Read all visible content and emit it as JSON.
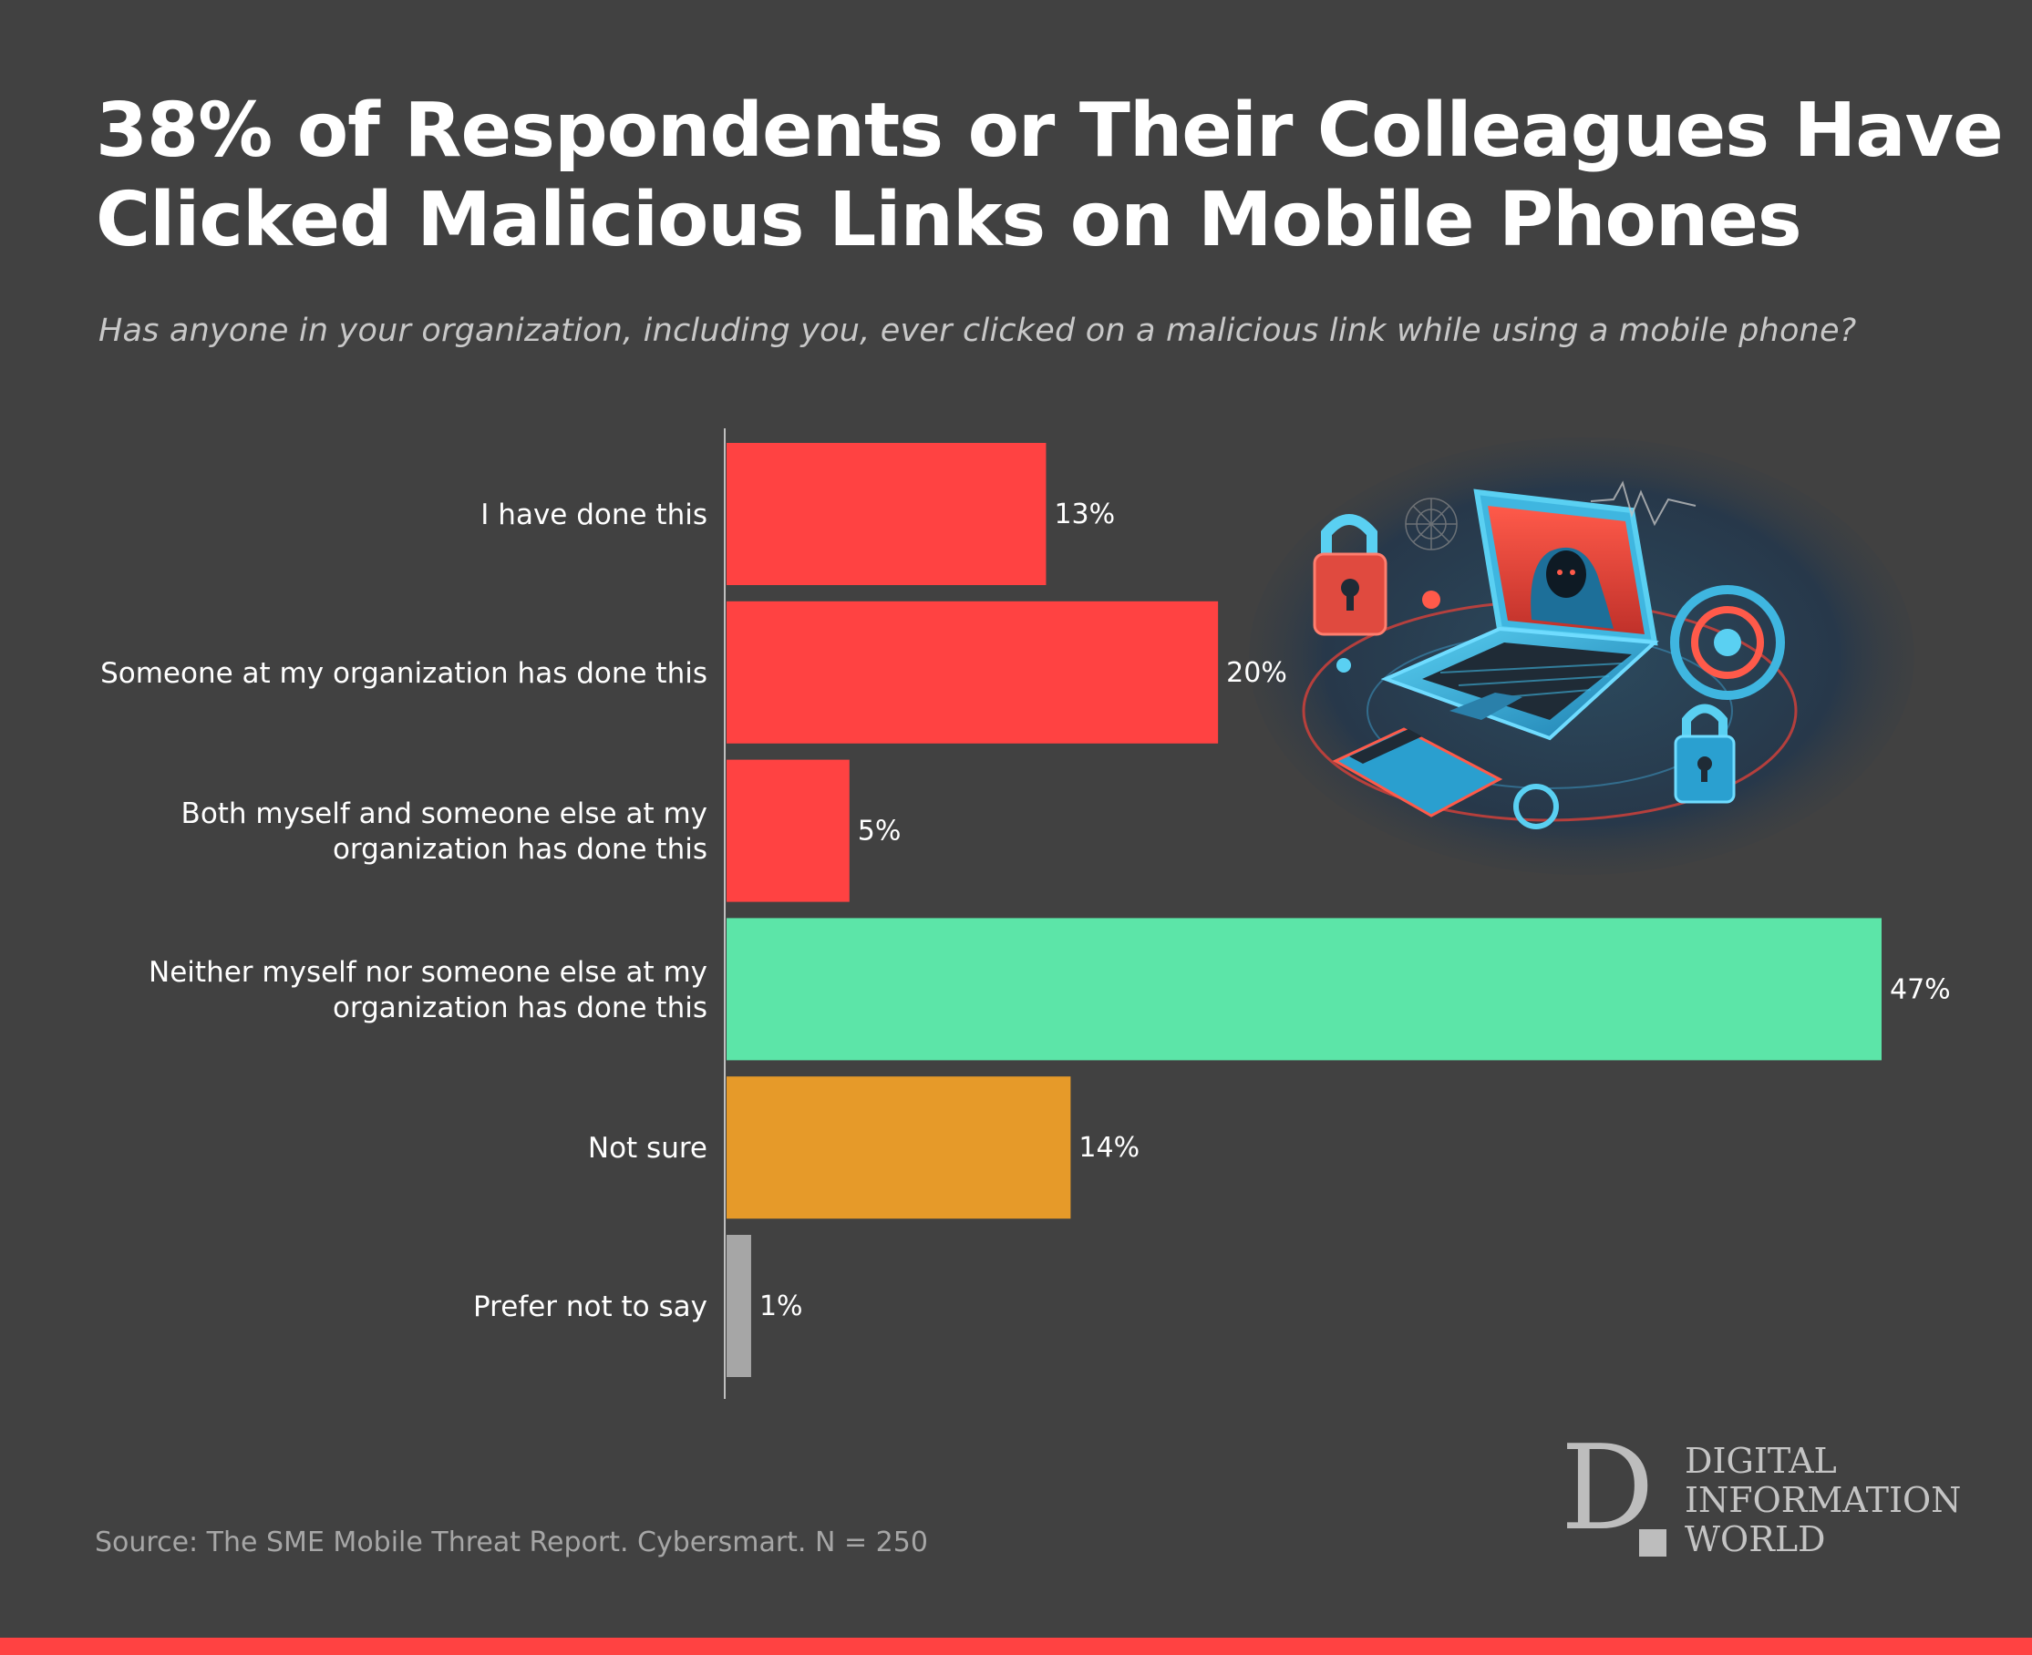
{
  "title_lines": [
    "38% of Respondents or Their Colleagues Have",
    "Clicked Malicious Links on Mobile Phones"
  ],
  "subtitle": "Has anyone in your organization, including you, ever clicked on a malicious link while using a mobile phone?",
  "source": "Source: The SME Mobile Threat Report. Cybersmart. N = 250",
  "logo": {
    "mark": "D",
    "lines": [
      "DIGITAL",
      "INFORMATION",
      "WORLD"
    ]
  },
  "illustration": {
    "icon": "hacker-laptop-illustration",
    "elements": [
      "padlock-icon",
      "laptop-icon",
      "hooded-hacker-icon",
      "credit-card-icon",
      "target-icon"
    ]
  },
  "colors": {
    "background": "#414141",
    "red": "#ff4242",
    "green": "#5ce5a8",
    "orange": "#e69a29",
    "gray": "#a6a6a6",
    "axis": "#bfbfbf"
  },
  "chart_data": {
    "type": "bar",
    "orientation": "horizontal",
    "title": "38% of Respondents or Their Colleagues Have Clicked Malicious Links on Mobile Phones",
    "subtitle": "Has anyone in your organization, including you, ever clicked on a malicious link while using a mobile phone?",
    "unit": "%",
    "xlim": [
      0,
      47
    ],
    "grid": false,
    "legend": "none",
    "categories": [
      [
        "I have done this"
      ],
      [
        "Someone at my organization has done this"
      ],
      [
        "Both myself and someone else at my",
        "organization has done this"
      ],
      [
        "Neither myself nor someone else at my",
        "organization has done this"
      ],
      [
        "Not sure"
      ],
      [
        "Prefer not to say"
      ]
    ],
    "values": [
      13,
      20,
      5,
      47,
      14,
      1
    ],
    "value_labels": [
      "13%",
      "20%",
      "5%",
      "47%",
      "14%",
      "1%"
    ],
    "bar_colors": [
      "#ff4242",
      "#ff4242",
      "#ff4242",
      "#5ce5a8",
      "#e69a29",
      "#a6a6a6"
    ]
  }
}
